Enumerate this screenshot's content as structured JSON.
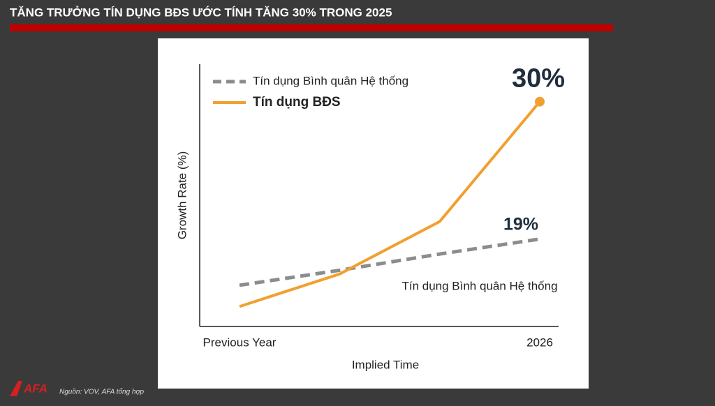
{
  "header": {
    "title": "TĂNG TRƯỞNG TÍN DỤNG BĐS ƯỚC TÍNH TĂNG 30% TRONG 2025"
  },
  "footer": {
    "logo": "AFA",
    "source": "Nguồn: VOV, AFA tổng hợp"
  },
  "chart_data": {
    "type": "line",
    "x_label": "Implied Time",
    "y_label": "Growth Rate (%)",
    "categories": [
      "Previous Year",
      null,
      null,
      "2026"
    ],
    "series": [
      {
        "name": "Tín dụng Bình quân Hệ thống",
        "color": "#8c8c8c",
        "dashed": true,
        "values": [
          15.3,
          16.5,
          17.8,
          19
        ],
        "value_labels": [
          null,
          null,
          null,
          "19%"
        ]
      },
      {
        "name": "Tín dụng BĐS",
        "color": "#f0a030",
        "dashed": false,
        "values": [
          13.6,
          16.2,
          20.4,
          30
        ],
        "value_labels": [
          null,
          null,
          null,
          "30%"
        ]
      }
    ],
    "ylim": [
      12,
      33
    ],
    "grid": false,
    "legend": "top-left"
  }
}
